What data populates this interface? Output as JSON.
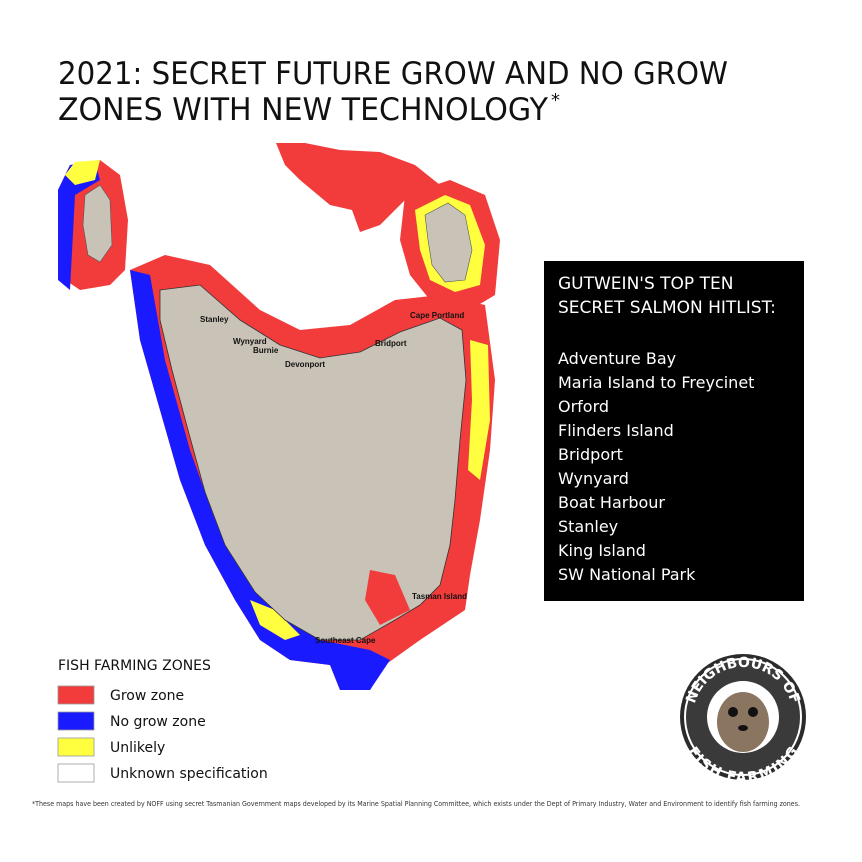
{
  "title": {
    "lines": [
      "2021: SECRET FUTURE GROW AND NO GROW",
      "ZONES WITH NEW TECHNOLOGY"
    ],
    "mark": "*"
  },
  "map": {
    "labels": [
      "Stanley",
      "Wynyard",
      "Burnie",
      "Devonport",
      "Bridport",
      "Cape Portland",
      "Tasman Island",
      "Southeast Cape"
    ]
  },
  "hitlist": {
    "heading": [
      "GUTWEIN'S TOP TEN",
      "SECRET SALMON HITLIST:"
    ],
    "items": [
      "Adventure Bay",
      "Maria Island to Freycinet",
      "Orford",
      "Flinders Island",
      "Bridport",
      "Wynyard",
      "Boat Harbour",
      "Stanley",
      "King Island",
      "SW National Park"
    ]
  },
  "legend": {
    "title": "FISH FARMING ZONES",
    "items": [
      {
        "label": "Grow zone",
        "color": "#f23b3b"
      },
      {
        "label": "No grow zone",
        "color": "#1a1aff"
      },
      {
        "label": "Unlikely",
        "color": "#ffff40"
      },
      {
        "label": "Unknown specification",
        "color": "#ffffff"
      }
    ]
  },
  "logo": {
    "top": "NEIGHBOURS OF",
    "bottom": "FISH FARMING"
  },
  "footnote": "*These maps have been created by NOFF using secret Tasmanian Government maps developed by its Marine Spatial Planning Committee, which exists under the Dept of Primary Industry, Water and Environment to identify fish farming zones."
}
